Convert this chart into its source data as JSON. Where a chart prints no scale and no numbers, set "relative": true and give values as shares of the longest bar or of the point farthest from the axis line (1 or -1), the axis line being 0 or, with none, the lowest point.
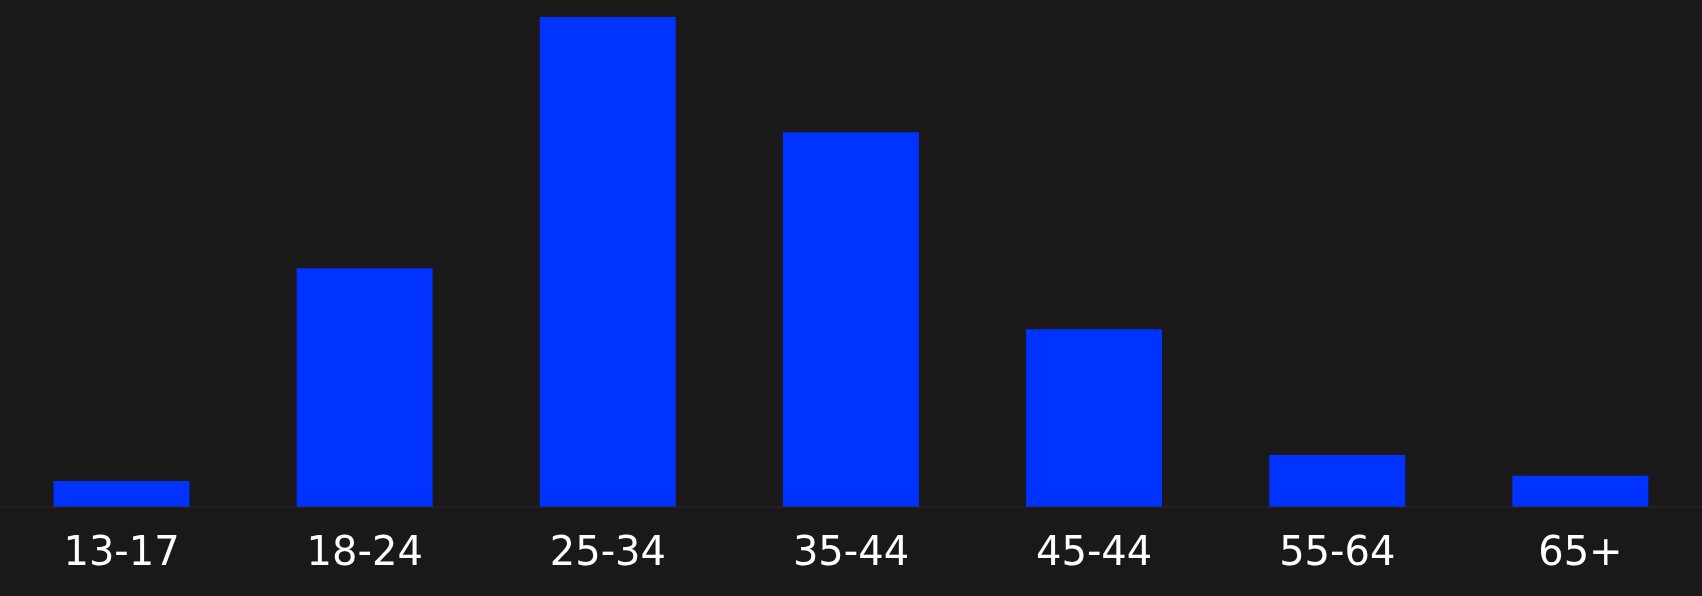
{
  "chart_data": {
    "type": "bar",
    "relative": true,
    "categories": [
      "13-17",
      "18-24",
      "25-34",
      "35-44",
      "45-44",
      "55-64",
      "65+"
    ],
    "values": [
      0.053,
      0.487,
      1,
      0.765,
      0.363,
      0.106,
      0.064
    ],
    "color": "#0033ff",
    "grid": false
  }
}
